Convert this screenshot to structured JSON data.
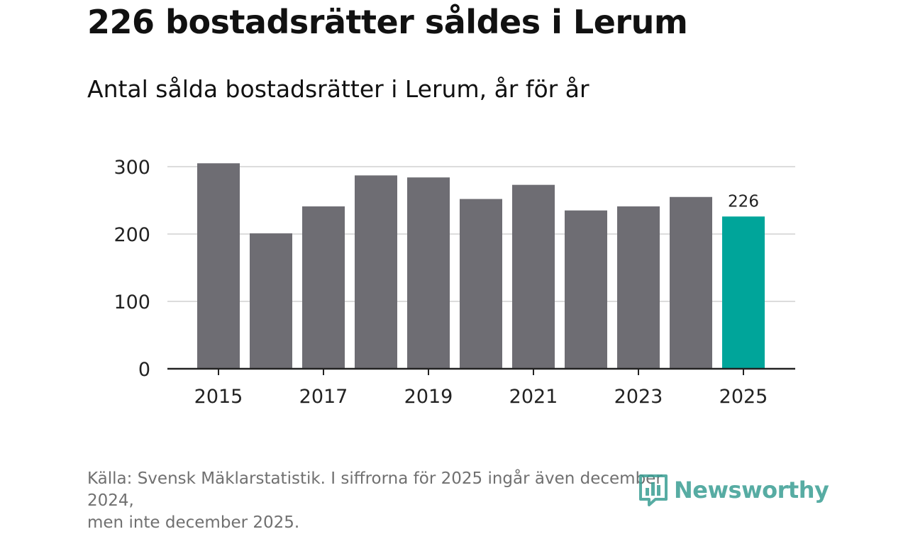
{
  "title": "226 bostadsrätter såldes i Lerum",
  "subtitle": "Antal sålda bostadsrätter i Lerum, år för år",
  "source": {
    "line1": "Källa: Svensk Mäklarstatistik. I siffrorna för 2025 ingår även december 2024,",
    "line2": "men inte december 2025."
  },
  "logo": {
    "text": "Newsworthy",
    "icon": "bar-chart-icon",
    "color": "#3a9e94"
  },
  "colors": {
    "bar": "#6e6d73",
    "highlight": "#00a59a",
    "grid": "#dcdcdc",
    "axis": "#222222",
    "tick_text": "#222222"
  },
  "chart_data": {
    "type": "bar",
    "title": "Antal sålda bostadsrätter i Lerum, år för år",
    "categories": [
      "2015",
      "2016",
      "2017",
      "2018",
      "2019",
      "2020",
      "2021",
      "2022",
      "2023",
      "2024",
      "2025"
    ],
    "values": [
      305,
      201,
      241,
      287,
      284,
      252,
      273,
      235,
      241,
      255,
      226
    ],
    "highlight_index": 10,
    "data_labels": [
      {
        "category": "2025",
        "label": "226"
      }
    ],
    "xlabel": "",
    "ylabel": "",
    "ylim": [
      0,
      300
    ],
    "yticks": [
      {
        "value": 0,
        "label": "0"
      },
      {
        "value": 100,
        "label": "100"
      },
      {
        "value": 200,
        "label": "200"
      },
      {
        "value": 300,
        "label": "300"
      }
    ],
    "xtick_labels": [
      "2015",
      "2017",
      "2019",
      "2021",
      "2023",
      "2025"
    ],
    "grid": true,
    "legend": "none"
  }
}
